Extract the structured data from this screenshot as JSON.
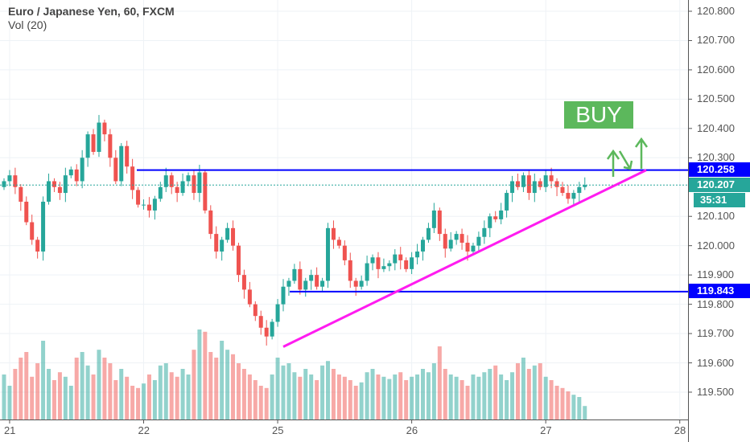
{
  "header": {
    "title": "Euro / Japanese Yen, 60, FXCM",
    "indicator": "Vol (20)"
  },
  "annotation": {
    "buy_label": "BUY"
  },
  "price_tags": {
    "resistance": "120.258",
    "last": "120.207",
    "countdown": "35:31",
    "support": "119.843"
  },
  "colors": {
    "up": "#26a69a",
    "down": "#ef5350",
    "line": "#0000ff",
    "trend": "#ff1cf0",
    "arrow": "#5cb85c",
    "last": "#26a69a"
  },
  "chart_data": {
    "type": "candlestick",
    "title": "Euro / Japanese Yen, 60, FXCM",
    "ylim": [
      119.42,
      120.84
    ],
    "y_ticks": [
      "120.800",
      "120.700",
      "120.600",
      "120.500",
      "120.400",
      "120.300",
      "120.100",
      "120.000",
      "119.900",
      "119.800",
      "119.700",
      "119.600",
      "119.500"
    ],
    "x_ticks": [
      {
        "label": "21",
        "index": 1
      },
      {
        "label": "22",
        "index": 25
      },
      {
        "label": "25",
        "index": 49
      },
      {
        "label": "26",
        "index": 73
      },
      {
        "label": "27",
        "index": 97
      },
      {
        "label": "28",
        "index": 121
      }
    ],
    "open_first": 120.2,
    "closes": [
      120.22,
      120.24,
      120.2,
      120.15,
      120.08,
      120.02,
      119.98,
      120.15,
      120.22,
      120.2,
      120.18,
      120.24,
      120.26,
      120.22,
      120.3,
      120.38,
      120.32,
      120.42,
      120.38,
      120.3,
      120.22,
      120.34,
      120.27,
      120.19,
      120.14,
      120.14,
      120.12,
      120.16,
      120.2,
      120.24,
      120.2,
      120.18,
      120.22,
      120.24,
      120.18,
      120.25,
      120.12,
      120.04,
      119.98,
      120.02,
      120.06,
      120.0,
      119.9,
      119.85,
      119.8,
      119.76,
      119.72,
      119.69,
      119.74,
      119.8,
      119.86,
      119.88,
      119.92,
      119.85,
      119.88,
      119.9,
      119.86,
      119.88,
      120.06,
      120.02,
      120.0,
      119.95,
      119.88,
      119.86,
      119.88,
      119.94,
      119.96,
      119.92,
      119.93,
      119.94,
      119.97,
      119.95,
      119.92,
      119.96,
      119.98,
      120.02,
      120.06,
      120.12,
      120.04,
      119.99,
      120.02,
      120.04,
      120.01,
      119.98,
      120.0,
      120.03,
      120.06,
      120.1,
      120.09,
      120.12,
      120.18,
      120.22,
      120.2,
      120.24,
      120.18,
      120.22,
      120.2,
      120.24,
      120.22,
      120.2,
      120.18,
      120.16,
      120.18,
      120.2,
      120.207
    ],
    "volumes": [
      40,
      30,
      45,
      55,
      60,
      38,
      50,
      70,
      45,
      35,
      42,
      38,
      30,
      55,
      60,
      48,
      40,
      62,
      55,
      50,
      35,
      45,
      38,
      30,
      28,
      32,
      40,
      35,
      48,
      50,
      42,
      38,
      45,
      40,
      62,
      80,
      78,
      60,
      55,
      70,
      62,
      58,
      50,
      45,
      40,
      35,
      30,
      28,
      40,
      55,
      48,
      50,
      42,
      38,
      45,
      40,
      35,
      48,
      52,
      45,
      40,
      38,
      35,
      30,
      33,
      42,
      45,
      40,
      38,
      36,
      40,
      42,
      35,
      38,
      40,
      45,
      42,
      50,
      65,
      45,
      40,
      38,
      35,
      30,
      40,
      38,
      42,
      45,
      48,
      40,
      35,
      42,
      50,
      55,
      45,
      48,
      50,
      38,
      35,
      30,
      28,
      25,
      22,
      20,
      12
    ],
    "resistance": 120.258,
    "support": 119.843,
    "trendline": {
      "from": {
        "index": 50,
        "price": 119.655
      },
      "to": {
        "index": 115,
        "price": 120.258
      }
    },
    "current_price": 120.207
  }
}
